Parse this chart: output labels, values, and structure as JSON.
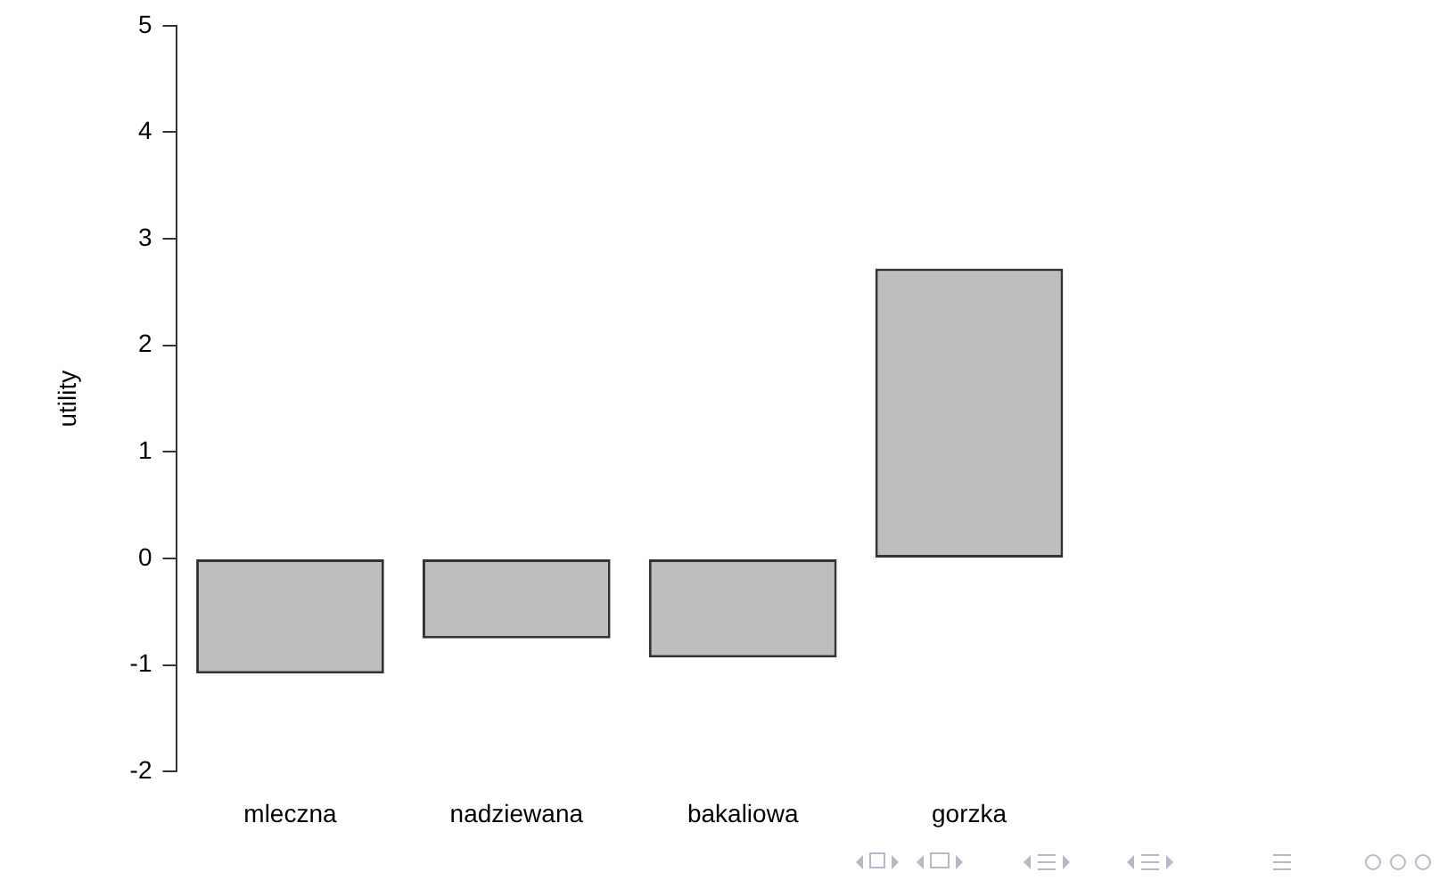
{
  "chart_data": {
    "type": "bar",
    "ylabel": "utility",
    "categories": [
      "mleczna",
      "nadziewana",
      "bakaliowa",
      "gorzka"
    ],
    "values": [
      -1.08,
      -0.75,
      -0.93,
      2.72
    ],
    "color": "#bebebe",
    "ylim": [
      -2,
      5
    ],
    "yticks": [
      -2,
      -1,
      0,
      1,
      2,
      3,
      4,
      5
    ],
    "grid": false,
    "legend": false
  }
}
